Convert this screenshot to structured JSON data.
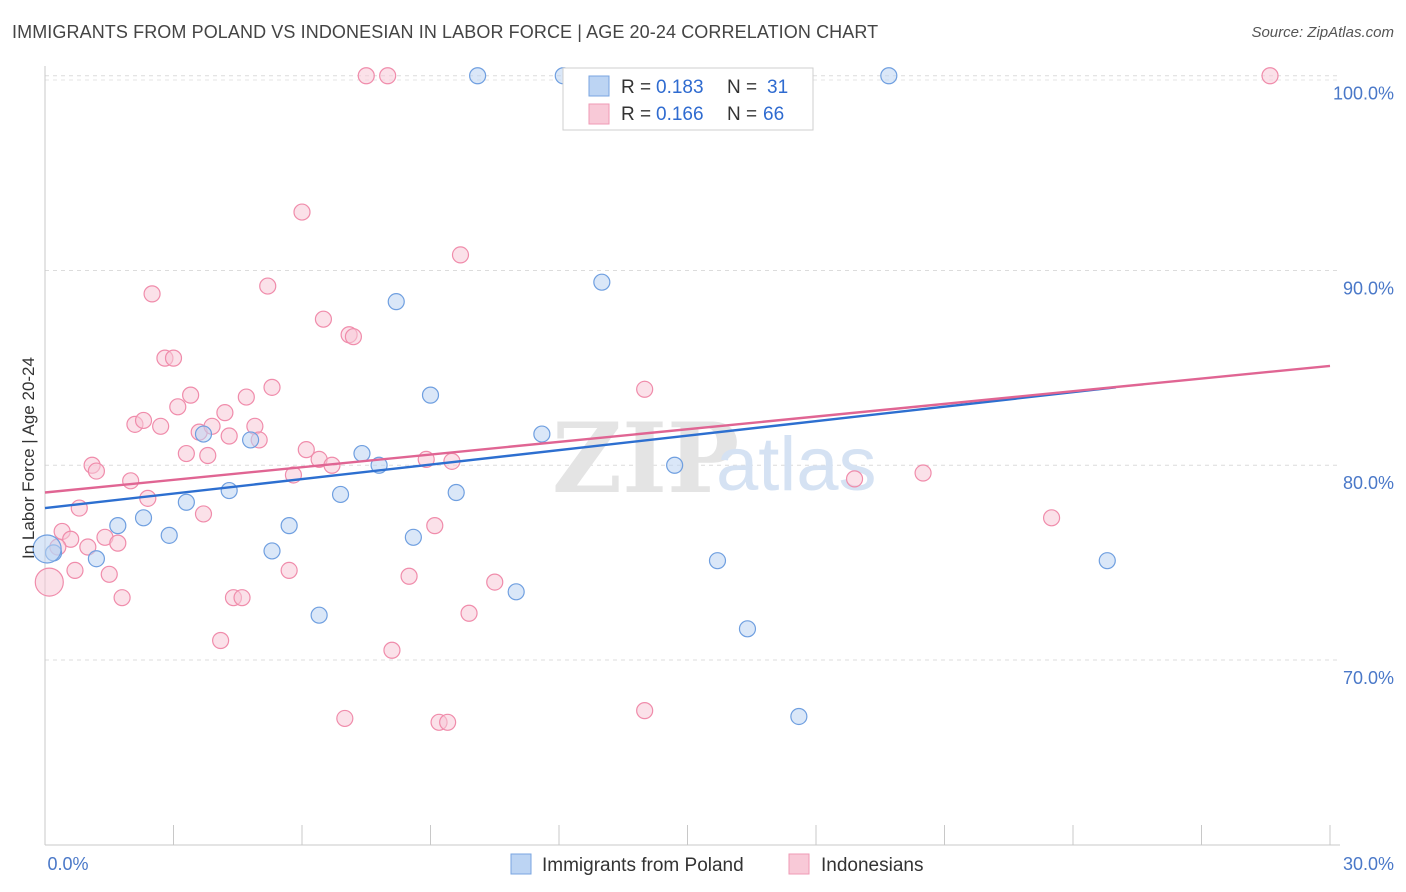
{
  "header": {
    "title": "IMMIGRANTS FROM POLAND VS INDONESIAN IN LABOR FORCE | AGE 20-24 CORRELATION CHART",
    "source": "Source: ZipAtlas.com"
  },
  "watermark": {
    "zip": "ZIP",
    "atlas": "atlas"
  },
  "legend": {
    "r_label": "R =",
    "n_label": "N =",
    "items": [
      {
        "r": "0.183",
        "n": "31"
      },
      {
        "r": "0.166",
        "n": "66"
      }
    ]
  },
  "bottom_legend": [
    "Immigrants from Poland",
    "Indonesians"
  ],
  "chart_data": {
    "type": "scatter",
    "title": "IMMIGRANTS FROM POLAND VS INDONESIAN IN LABOR FORCE | AGE 20-24 CORRELATION CHART",
    "xlabel": "",
    "ylabel": "In Labor Force | Age 20-24",
    "xlim": [
      0,
      30
    ],
    "ylim": [
      60.5,
      100.5
    ],
    "x_tick_labels": [
      "0.0%",
      "30.0%"
    ],
    "y_ticks": [
      70,
      80,
      90,
      100
    ],
    "y_tick_labels": [
      "70.0%",
      "80.0%",
      "90.0%",
      "100.0%"
    ],
    "grid": true,
    "colors": {
      "poland": "#6f9fe0",
      "poland_line": "#2d6fd0",
      "indonesian": "#f08cab",
      "indonesian_line": "#e06593",
      "poland_fill": "#bcd4f3",
      "indonesian_fill": "#f8c9d7"
    },
    "series": [
      {
        "name": "Immigrants from Poland",
        "key": "poland",
        "trend": {
          "x": [
            0,
            25
          ],
          "y": [
            77.8,
            84.0
          ]
        },
        "points": [
          [
            0.2,
            75.5
          ],
          [
            1.2,
            75.2
          ],
          [
            1.7,
            76.9
          ],
          [
            2.3,
            77.3
          ],
          [
            2.9,
            76.4
          ],
          [
            3.3,
            78.1
          ],
          [
            3.7,
            81.6
          ],
          [
            4.3,
            78.7
          ],
          [
            4.8,
            81.3
          ],
          [
            5.3,
            75.6
          ],
          [
            5.7,
            76.9
          ],
          [
            6.4,
            72.3
          ],
          [
            6.9,
            78.5
          ],
          [
            7.4,
            80.6
          ],
          [
            7.8,
            80.0
          ],
          [
            8.2,
            88.4
          ],
          [
            8.6,
            76.3
          ],
          [
            9.0,
            83.6
          ],
          [
            9.6,
            78.6
          ],
          [
            10.1,
            100.0
          ],
          [
            11.0,
            73.5
          ],
          [
            11.6,
            81.6
          ],
          [
            12.1,
            100.0
          ],
          [
            13.0,
            89.4
          ],
          [
            14.7,
            80.0
          ],
          [
            15.7,
            75.1
          ],
          [
            16.4,
            71.6
          ],
          [
            17.6,
            67.1
          ],
          [
            19.7,
            100.0
          ],
          [
            24.8,
            75.1
          ],
          [
            0.05,
            75.7
          ]
        ]
      },
      {
        "name": "Indonesians",
        "key": "indonesian",
        "trend": {
          "x": [
            0,
            30
          ],
          "y": [
            78.6,
            85.1
          ]
        },
        "points": [
          [
            0.1,
            74.0
          ],
          [
            0.4,
            76.6
          ],
          [
            0.6,
            76.2
          ],
          [
            0.7,
            74.6
          ],
          [
            0.8,
            77.8
          ],
          [
            1.0,
            75.8
          ],
          [
            1.1,
            80.0
          ],
          [
            1.2,
            79.7
          ],
          [
            1.4,
            76.3
          ],
          [
            1.5,
            74.4
          ],
          [
            1.7,
            76.0
          ],
          [
            1.8,
            73.2
          ],
          [
            2.0,
            79.2
          ],
          [
            2.1,
            82.1
          ],
          [
            2.3,
            82.3
          ],
          [
            2.4,
            78.3
          ],
          [
            2.5,
            88.8
          ],
          [
            2.7,
            82.0
          ],
          [
            2.8,
            85.5
          ],
          [
            3.0,
            85.5
          ],
          [
            3.1,
            83.0
          ],
          [
            3.3,
            80.6
          ],
          [
            3.4,
            83.6
          ],
          [
            3.6,
            81.7
          ],
          [
            3.7,
            77.5
          ],
          [
            3.8,
            80.5
          ],
          [
            3.9,
            82.0
          ],
          [
            4.1,
            71.0
          ],
          [
            4.2,
            82.7
          ],
          [
            4.3,
            81.5
          ],
          [
            4.4,
            73.2
          ],
          [
            4.6,
            73.2
          ],
          [
            4.7,
            83.5
          ],
          [
            4.9,
            82.0
          ],
          [
            5.0,
            81.3
          ],
          [
            5.2,
            89.2
          ],
          [
            5.3,
            84.0
          ],
          [
            5.7,
            74.6
          ],
          [
            5.8,
            79.5
          ],
          [
            6.0,
            93.0
          ],
          [
            6.1,
            80.8
          ],
          [
            6.4,
            80.3
          ],
          [
            6.5,
            87.5
          ],
          [
            6.7,
            80.0
          ],
          [
            7.0,
            67.0
          ],
          [
            7.1,
            86.7
          ],
          [
            7.2,
            86.6
          ],
          [
            7.5,
            100.0
          ],
          [
            8.0,
            100.0
          ],
          [
            8.1,
            70.5
          ],
          [
            8.5,
            74.3
          ],
          [
            8.9,
            80.3
          ],
          [
            9.1,
            76.9
          ],
          [
            9.2,
            66.8
          ],
          [
            9.4,
            66.8
          ],
          [
            9.7,
            90.8
          ],
          [
            9.9,
            72.4
          ],
          [
            10.5,
            74.0
          ],
          [
            14.0,
            67.4
          ],
          [
            14.0,
            83.9
          ],
          [
            18.9,
            79.3
          ],
          [
            20.5,
            79.6
          ],
          [
            23.5,
            77.3
          ],
          [
            28.6,
            100.0
          ],
          [
            0.3,
            75.8
          ],
          [
            9.5,
            80.2
          ]
        ]
      }
    ]
  }
}
